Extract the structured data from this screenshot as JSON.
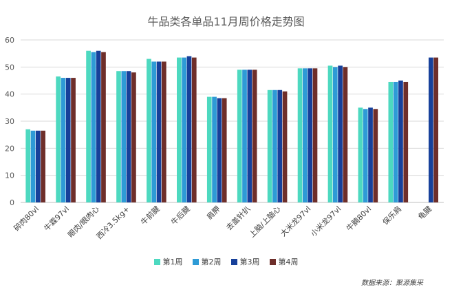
{
  "chart_data": {
    "type": "bar",
    "title": "牛品类各单品11月周价格走势图",
    "xlabel": "",
    "ylabel": "",
    "ylim": [
      0,
      60
    ],
    "yticks": [
      0,
      10,
      20,
      30,
      40,
      50,
      60
    ],
    "grid": true,
    "legend_position": "bottom",
    "categories": [
      "碎肉80vl",
      "牛霖97vl",
      "眼肉/眼肉心",
      "西冷3.5kg+",
      "牛前腱",
      "牛后腱",
      "肩胛",
      "去盖针扒",
      "上脑/上脑心",
      "大米龙97vl",
      "小米龙97vl",
      "牛腩80vl",
      "保乐肩",
      "龟腱"
    ],
    "series": [
      {
        "name": "第1周",
        "color": "#4dd9c0",
        "values": [
          27.0,
          46.5,
          56.0,
          48.5,
          53.0,
          53.5,
          39.0,
          49.0,
          41.5,
          49.5,
          50.5,
          35.0,
          44.5,
          null
        ]
      },
      {
        "name": "第2周",
        "color": "#2e9bd6",
        "values": [
          26.5,
          46.0,
          55.5,
          48.5,
          52.0,
          53.5,
          39.0,
          49.0,
          41.5,
          49.5,
          50.0,
          34.5,
          44.5,
          null
        ]
      },
      {
        "name": "第3周",
        "color": "#17409a",
        "values": [
          26.5,
          46.0,
          56.0,
          48.5,
          52.0,
          54.0,
          38.5,
          49.0,
          41.5,
          49.5,
          50.5,
          35.0,
          45.0,
          53.5
        ]
      },
      {
        "name": "第4周",
        "color": "#6e2e2a",
        "values": [
          26.5,
          46.0,
          55.5,
          48.0,
          52.0,
          53.5,
          38.5,
          49.0,
          41.0,
          49.5,
          50.0,
          34.5,
          44.5,
          53.5
        ]
      }
    ]
  },
  "source_note": "数据来源：聚源集采"
}
